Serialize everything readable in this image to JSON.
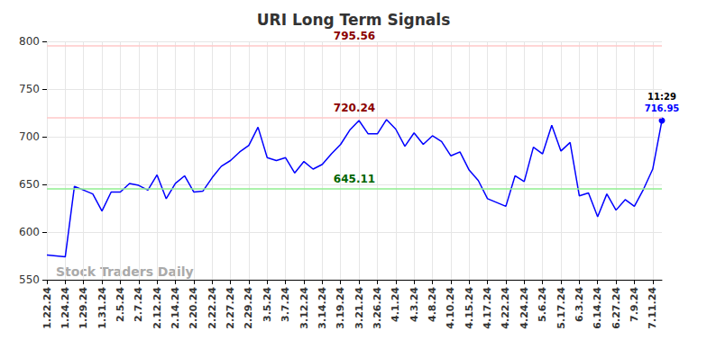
{
  "chart_data": {
    "type": "line",
    "title": "URI Long Term Signals",
    "watermark": "Stock Traders Daily",
    "categories": [
      "1.22.24",
      null,
      "1.24.24",
      null,
      "1.29.24",
      null,
      "1.31.24",
      null,
      "2.5.24",
      null,
      "2.7.24",
      null,
      "2.12.24",
      null,
      "2.14.24",
      null,
      "2.20.24",
      null,
      "2.22.24",
      null,
      "2.27.24",
      null,
      "2.29.24",
      null,
      "3.5.24",
      null,
      "3.7.24",
      null,
      "3.12.24",
      null,
      "3.14.24",
      null,
      "3.19.24",
      null,
      "3.21.24",
      null,
      "3.26.24",
      null,
      "4.1.24",
      null,
      "4.3.24",
      null,
      "4.8.24",
      null,
      "4.10.24",
      null,
      "4.15.24",
      null,
      "4.17.24",
      null,
      "4.22.24",
      null,
      "4.24.24",
      null,
      "5.6.24",
      null,
      "5.17.24",
      null,
      "6.3.24",
      null,
      "6.14.24",
      null,
      "6.27.24",
      null,
      "7.9.24",
      null,
      "7.11.24",
      null
    ],
    "values": [
      576,
      575,
      574,
      648,
      644,
      640,
      622,
      642,
      642,
      651,
      649,
      644,
      660,
      635,
      651,
      659,
      642,
      643,
      657,
      669,
      675,
      684,
      691,
      710,
      678,
      675,
      678,
      662,
      674,
      666,
      671,
      682,
      692,
      707,
      717,
      703,
      703,
      718,
      708,
      690,
      704,
      692,
      701,
      695,
      680,
      684,
      665,
      654,
      635,
      631,
      627,
      659,
      653,
      689,
      682,
      712,
      685,
      694,
      638,
      641,
      616,
      640,
      623,
      634,
      627,
      645,
      666,
      716.95
    ],
    "color": "#0000ff",
    "last_point_note": "11:29",
    "levels": [
      {
        "value": 795.56,
        "color": "#8b0000"
      },
      {
        "value": 720.24,
        "color": "#8b0000"
      },
      {
        "value": 645.11,
        "color": "#006400"
      }
    ],
    "ylim": [
      550,
      800
    ],
    "yticks": [
      550,
      600,
      650,
      700,
      750,
      800
    ],
    "grid": true
  }
}
